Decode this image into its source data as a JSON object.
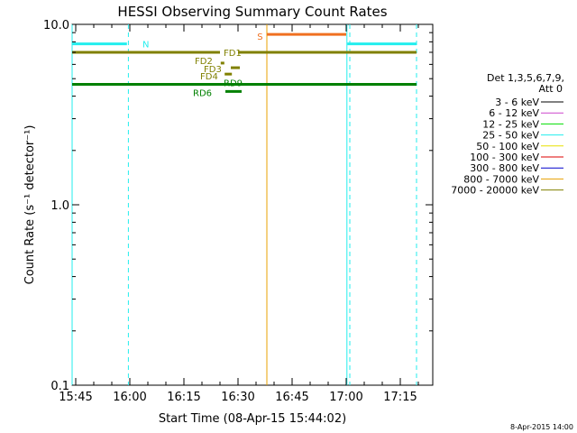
{
  "chart_data": {
    "type": "line",
    "title": "HESSI Observing Summary Count Rates",
    "xlabel": "Start Time (08-Apr-15 15:44:02)",
    "ylabel": "Count Rate (s⁻¹ detector⁻¹)",
    "x_unit": "minutes after 15:44",
    "xlim": [
      0,
      100
    ],
    "ylim": [
      0.1,
      10.0
    ],
    "y_scale": "log",
    "grid": false,
    "x_ticks": [
      {
        "label": "15:45",
        "value": 1
      },
      {
        "label": "16:00",
        "value": 16
      },
      {
        "label": "16:15",
        "value": 31
      },
      {
        "label": "16:30",
        "value": 46
      },
      {
        "label": "16:45",
        "value": 61
      },
      {
        "label": "17:00",
        "value": 76
      },
      {
        "label": "17:15",
        "value": 91
      }
    ],
    "y_ticks": [
      {
        "label": "10.0",
        "value": 10.0
      },
      {
        "label": "1.0",
        "value": 1.0
      },
      {
        "label": "0.1",
        "value": 0.1
      }
    ],
    "legend": {
      "placement": "right",
      "header": [
        "Det 1,3,5,6,7,9,",
        "Att 0"
      ],
      "entries": [
        {
          "label": "3 - 6 keV",
          "color": "#000000"
        },
        {
          "label": "6 - 12 keV",
          "color": "#cc44cc"
        },
        {
          "label": "12 - 25 keV",
          "color": "#00dd00"
        },
        {
          "label": "25 - 50 keV",
          "color": "#22eeee"
        },
        {
          "label": "50 - 100 keV",
          "color": "#e8e000"
        },
        {
          "label": "100 - 300 keV",
          "color": "#dd0000"
        },
        {
          "label": "300 - 800 keV",
          "color": "#0000cc"
        },
        {
          "label": "800 - 7000 keV",
          "color": "#e8a000"
        },
        {
          "label": "7000 - 20000 keV",
          "color": "#808000"
        }
      ]
    },
    "horizontal_segments": [
      {
        "color": "#22eeee",
        "x": [
          0,
          15.2
        ],
        "y": 7.8
      },
      {
        "color": "#22eeee",
        "x": [
          76.3,
          95.5
        ],
        "y": 7.8
      },
      {
        "color": "#f07020",
        "x": [
          54,
          76
        ],
        "y": 8.8
      },
      {
        "color": "#808000",
        "x": [
          0,
          41
        ],
        "y": 7.0
      },
      {
        "color": "#808000",
        "x": [
          46,
          95.5
        ],
        "y": 7.0
      },
      {
        "color": "#808000",
        "x": [
          41.2,
          42.2
        ],
        "y": 6.1
      },
      {
        "color": "#808000",
        "x": [
          44,
          46.5
        ],
        "y": 5.75
      },
      {
        "color": "#808000",
        "x": [
          42.3,
          44.3
        ],
        "y": 5.3
      },
      {
        "color": "#008000",
        "x": [
          0,
          95.5
        ],
        "y": 4.65
      },
      {
        "color": "#008000",
        "x": [
          42.5,
          47
        ],
        "y": 4.25
      }
    ],
    "vertical_lines": [
      {
        "color": "#22eeee",
        "x": 0,
        "style": "solid"
      },
      {
        "color": "#22eeee",
        "x": 15.6,
        "style": "dashed"
      },
      {
        "color": "#e8a000",
        "x": 54,
        "style": "solid"
      },
      {
        "color": "#22eeee",
        "x": 76.2,
        "style": "solid"
      },
      {
        "color": "#22eeee",
        "x": 77,
        "style": "dashed"
      },
      {
        "color": "#22eeee",
        "x": 95.5,
        "style": "dashed"
      }
    ],
    "annotations": [
      {
        "text": "N",
        "x": 19.5,
        "y": 7.8,
        "color": "#22eeee"
      },
      {
        "text": "S",
        "x": 51.3,
        "y": 8.6,
        "color": "#f07020"
      },
      {
        "text": "FD1",
        "x": 42,
        "y": 7.0,
        "color": "#808000"
      },
      {
        "text": "FD2",
        "x": 34,
        "y": 6.3,
        "color": "#808000"
      },
      {
        "text": "FD3",
        "x": 36.5,
        "y": 5.7,
        "color": "#808000"
      },
      {
        "text": "FD4",
        "x": 35.5,
        "y": 5.2,
        "color": "#808000"
      },
      {
        "text": "RD9",
        "x": 42,
        "y": 4.75,
        "color": "#008000"
      },
      {
        "text": "RD6",
        "x": 33.5,
        "y": 4.2,
        "color": "#008000"
      }
    ],
    "footer": "8-Apr-2015 14:00"
  }
}
